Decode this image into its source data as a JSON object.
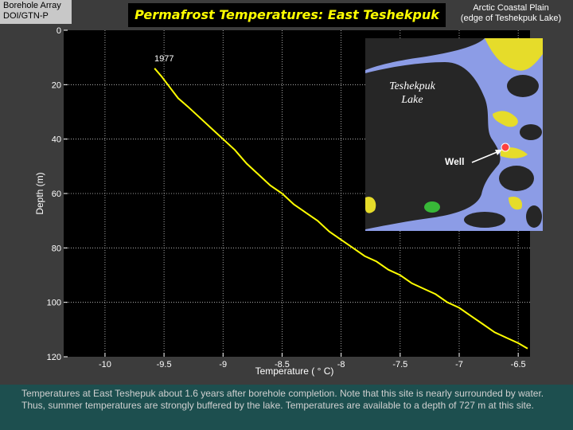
{
  "header": {
    "corner_label": "Borehole Array\nDOI/GTN-P",
    "title": "Permafrost Temperatures:  East Teshekpuk",
    "region_label": "Arctic Coastal Plain\n(edge of Teshekpuk Lake)"
  },
  "chart_data": {
    "type": "line",
    "xlabel": "Temperature ( ° C)",
    "ylabel": "Depth (m)",
    "xlim": [
      -10.35,
      -6.4
    ],
    "ylim": [
      0,
      120
    ],
    "y_inverted": true,
    "grid": true,
    "x_ticks": [
      -10,
      -9.5,
      -9,
      -8.5,
      -8,
      -7.5,
      -7,
      -6.5
    ],
    "x_tick_labels": [
      "-10",
      "-9.5",
      "-9",
      "-8.5",
      "-8",
      "-7.5",
      "-7",
      "-6.5"
    ],
    "y_ticks": [
      0,
      20,
      40,
      60,
      80,
      100,
      120
    ],
    "y_tick_labels": [
      "0",
      "20",
      "40",
      "60",
      "80",
      "100",
      "120"
    ],
    "series": [
      {
        "name": "1977",
        "color": "#ffff00",
        "points": [
          [
            -9.58,
            14
          ],
          [
            -9.52,
            17
          ],
          [
            -9.45,
            21
          ],
          [
            -9.38,
            25
          ],
          [
            -9.3,
            28
          ],
          [
            -9.2,
            32
          ],
          [
            -9.1,
            36
          ],
          [
            -9.0,
            40
          ],
          [
            -8.9,
            44
          ],
          [
            -8.8,
            49
          ],
          [
            -8.7,
            53
          ],
          [
            -8.6,
            57
          ],
          [
            -8.5,
            60
          ],
          [
            -8.4,
            64
          ],
          [
            -8.3,
            67
          ],
          [
            -8.2,
            70
          ],
          [
            -8.1,
            74
          ],
          [
            -8.0,
            77
          ],
          [
            -7.9,
            80
          ],
          [
            -7.8,
            83
          ],
          [
            -7.7,
            85
          ],
          [
            -7.6,
            88
          ],
          [
            -7.5,
            90
          ],
          [
            -7.4,
            93
          ],
          [
            -7.3,
            95
          ],
          [
            -7.2,
            97
          ],
          [
            -7.1,
            100
          ],
          [
            -7.0,
            102
          ],
          [
            -6.9,
            105
          ],
          [
            -6.8,
            108
          ],
          [
            -6.7,
            111
          ],
          [
            -6.6,
            113
          ],
          [
            -6.5,
            115
          ],
          [
            -6.42,
            117
          ]
        ]
      }
    ]
  },
  "inset": {
    "lake_label": "Teshekpuk Lake",
    "well_label": "Well",
    "water_color": "#262626",
    "land_color": "#8c9ce6",
    "veg_color": "#e6dc2a",
    "well_color": "#ff4040"
  },
  "caption": "Temperatures at East Teshepuk about 1.6 years after borehole completion.  Note that this site is nearly surrounded by water.  Thus, summer temperatures are strongly buffered by the lake.  Temperatures are available to a depth of 727 m at this site."
}
